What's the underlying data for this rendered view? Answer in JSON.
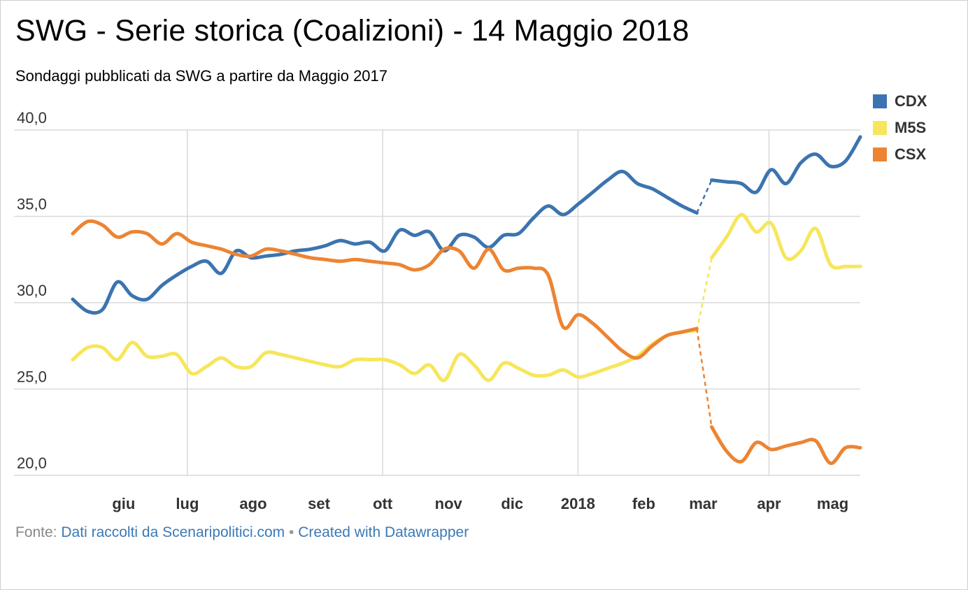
{
  "title": "SWG - Serie storica (Coalizioni) - 14 Maggio 2018",
  "subtitle": "Sondaggi pubblicati da SWG a partire da Maggio 2017",
  "footer": {
    "prefix": "Fonte:",
    "source_link": "Dati raccolti da Scenaripolitici.com",
    "separator": "•",
    "created_link": "Created with Datawrapper"
  },
  "chart_data": {
    "type": "line",
    "title": "SWG - Serie storica (Coalizioni) - 14 Maggio 2018",
    "subtitle": "Sondaggi pubblicati da SWG a partire da Maggio 2017",
    "xlabel": "",
    "ylabel": "",
    "ylim": [
      20,
      40
    ],
    "yticks": [
      {
        "value": 20,
        "label": "20,0"
      },
      {
        "value": 25,
        "label": "25,0"
      },
      {
        "value": 30,
        "label": "30,0"
      },
      {
        "value": 35,
        "label": "35,0"
      },
      {
        "value": 40,
        "label": "40,0"
      }
    ],
    "xlim": [
      "2017-05-08",
      "2018-05-14"
    ],
    "xticks": [
      {
        "date": "2017-06-01",
        "label": "giu",
        "grid": false
      },
      {
        "date": "2017-07-01",
        "label": "lug",
        "grid": true
      },
      {
        "date": "2017-08-01",
        "label": "ago",
        "grid": false
      },
      {
        "date": "2017-09-01",
        "label": "set",
        "grid": false
      },
      {
        "date": "2017-10-01",
        "label": "ott",
        "grid": true
      },
      {
        "date": "2017-11-01",
        "label": "nov",
        "grid": false
      },
      {
        "date": "2017-12-01",
        "label": "dic",
        "grid": false
      },
      {
        "date": "2018-01-01",
        "label": "2018",
        "grid": true
      },
      {
        "date": "2018-02-01",
        "label": "feb",
        "grid": false
      },
      {
        "date": "2018-03-01",
        "label": "mar",
        "grid": false
      },
      {
        "date": "2018-04-01",
        "label": "apr",
        "grid": true
      },
      {
        "date": "2018-05-01",
        "label": "mag",
        "grid": false
      }
    ],
    "grid": true,
    "legend_position": "top-right",
    "x": [
      "2017-05-08",
      "2017-05-15",
      "2017-05-22",
      "2017-05-29",
      "2017-06-05",
      "2017-06-12",
      "2017-06-19",
      "2017-06-26",
      "2017-07-03",
      "2017-07-10",
      "2017-07-17",
      "2017-07-24",
      "2017-07-31",
      "2017-08-07",
      "2017-08-14",
      "2017-08-21",
      "2017-08-28",
      "2017-09-04",
      "2017-09-11",
      "2017-09-18",
      "2017-09-25",
      "2017-10-02",
      "2017-10-09",
      "2017-10-16",
      "2017-10-23",
      "2017-10-30",
      "2017-11-06",
      "2017-11-13",
      "2017-11-20",
      "2017-11-27",
      "2017-12-04",
      "2017-12-11",
      "2017-12-18",
      "2017-12-25",
      "2018-01-01",
      "2018-01-08",
      "2018-01-15",
      "2018-01-22",
      "2018-01-29",
      "2018-02-05",
      "2018-02-12",
      "2018-02-19",
      "2018-02-26",
      "2018-03-05",
      "2018-03-12",
      "2018-03-19",
      "2018-03-26",
      "2018-04-02",
      "2018-04-09",
      "2018-04-16",
      "2018-04-23",
      "2018-04-30",
      "2018-05-07",
      "2018-05-14"
    ],
    "series": [
      {
        "name": "CDX",
        "color": "#3b74b0",
        "values": [
          30.2,
          29.5,
          29.6,
          31.2,
          30.4,
          30.2,
          31.0,
          31.6,
          32.1,
          32.4,
          31.7,
          33.0,
          32.6,
          32.7,
          32.8,
          33.0,
          33.1,
          33.3,
          33.6,
          33.4,
          33.5,
          33.0,
          34.2,
          33.9,
          34.1,
          33.0,
          33.9,
          33.8,
          33.2,
          33.9,
          34.0,
          34.9,
          35.6,
          35.1,
          35.7,
          36.4,
          37.1,
          37.6,
          36.9,
          36.6,
          36.1,
          35.6,
          35.2,
          37.1,
          37.0,
          36.9,
          36.4,
          37.7,
          36.9,
          38.1,
          38.6,
          37.9,
          38.2,
          39.6
        ],
        "dashed_segments": [
          [
            42,
            43
          ]
        ]
      },
      {
        "name": "M5S",
        "color": "#f6e65b",
        "values": [
          26.7,
          27.4,
          27.4,
          26.7,
          27.7,
          26.9,
          26.9,
          27.0,
          25.9,
          26.3,
          26.8,
          26.3,
          26.3,
          27.1,
          27.0,
          26.8,
          26.6,
          26.4,
          26.3,
          26.7,
          26.7,
          26.7,
          26.4,
          25.9,
          26.4,
          25.5,
          27.0,
          26.4,
          25.5,
          26.5,
          26.2,
          25.8,
          25.8,
          26.1,
          25.7,
          25.9,
          26.2,
          26.5,
          26.9,
          27.6,
          28.1,
          28.3,
          28.4,
          32.6,
          33.8,
          35.1,
          34.1,
          34.6,
          32.6,
          33.0,
          34.3,
          32.2,
          32.1,
          32.1
        ],
        "dashed_segments": [
          [
            42,
            43
          ]
        ]
      },
      {
        "name": "CSX",
        "color": "#ec8433",
        "values": [
          34.0,
          34.7,
          34.5,
          33.8,
          34.1,
          34.0,
          33.4,
          34.0,
          33.5,
          33.3,
          33.1,
          32.8,
          32.7,
          33.1,
          33.0,
          32.8,
          32.6,
          32.5,
          32.4,
          32.5,
          32.4,
          32.3,
          32.2,
          31.9,
          32.2,
          33.1,
          33.0,
          32.0,
          33.1,
          31.9,
          32.0,
          32.0,
          31.6,
          28.6,
          29.3,
          28.8,
          28.0,
          27.2,
          26.8,
          27.5,
          28.1,
          28.3,
          28.5,
          22.8,
          21.4,
          20.8,
          21.9,
          21.5,
          21.7,
          21.9,
          22.0,
          20.7,
          21.6,
          21.6
        ],
        "dashed_segments": [
          [
            42,
            43
          ]
        ]
      }
    ]
  }
}
